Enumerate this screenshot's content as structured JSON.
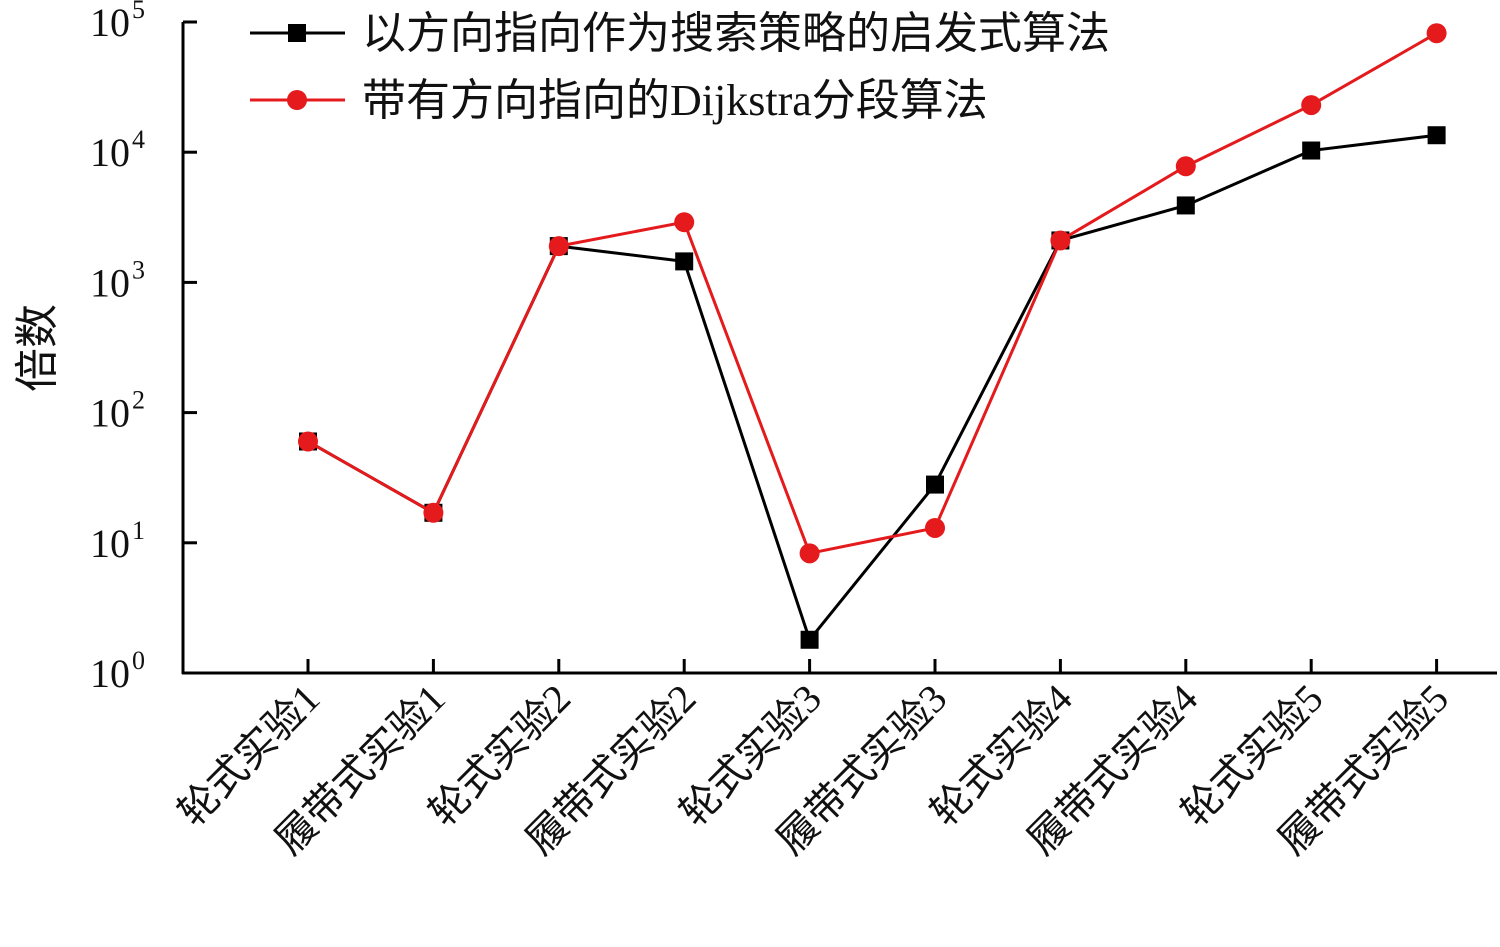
{
  "chart_data": {
    "type": "line",
    "title": "",
    "xlabel": "",
    "ylabel": "倍数",
    "y_scale": "log",
    "ylim": [
      1,
      100000
    ],
    "y_ticks": [
      {
        "base": "10",
        "exp": "0"
      },
      {
        "base": "10",
        "exp": "1"
      },
      {
        "base": "10",
        "exp": "2"
      },
      {
        "base": "10",
        "exp": "3"
      },
      {
        "base": "10",
        "exp": "4"
      },
      {
        "base": "10",
        "exp": "5"
      }
    ],
    "grid": false,
    "legend_position": "top",
    "categories": [
      "轮式实验1",
      "履带式实验1",
      "轮式实验2",
      "履带式实验2",
      "轮式实验3",
      "履带式实验3",
      "轮式实验4",
      "履带式实验4",
      "轮式实验5",
      "履带式实验5"
    ],
    "series": [
      {
        "name": "以方向指向作为搜索策略的启发式算法",
        "color": "#000000",
        "marker": "square",
        "values": [
          60,
          17,
          1900,
          1450,
          1.8,
          28,
          2100,
          3900,
          10300,
          13500
        ]
      },
      {
        "name": "带有方向指向的Dijkstra分段算法",
        "color": "#e41a1c",
        "marker": "circle",
        "values": [
          60,
          17,
          1900,
          2900,
          8.3,
          13,
          2100,
          7800,
          23000,
          82000
        ]
      }
    ]
  }
}
